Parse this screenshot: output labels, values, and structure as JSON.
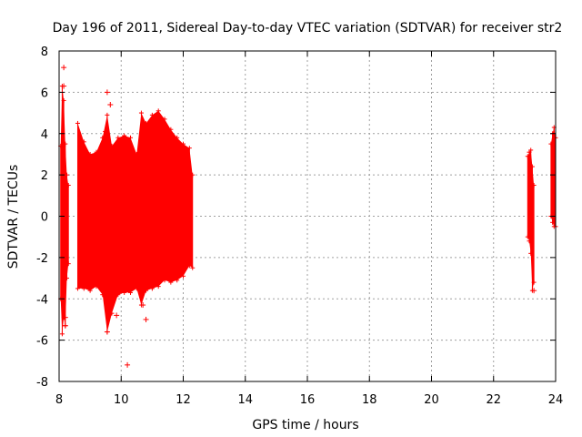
{
  "chart_data": {
    "type": "scatter",
    "title": "Day 196 of 2011, Sidereal Day-to-day VTEC variation (SDTVAR) for receiver str2",
    "xlabel": "GPS time / hours",
    "ylabel": "SDTVAR / TECUs",
    "xlim": [
      8,
      24
    ],
    "ylim": [
      -8,
      8
    ],
    "xticks": [
      8,
      10,
      12,
      14,
      16,
      18,
      20,
      22,
      24
    ],
    "yticks": [
      -8,
      -6,
      -4,
      -2,
      0,
      2,
      4,
      6,
      8
    ],
    "grid": true,
    "legend": "none",
    "color": "#ff0000",
    "marker": "+",
    "series": [
      {
        "segments": [
          {
            "x": [
              8.05,
              8.1,
              8.15,
              8.2,
              8.25,
              8.3
            ],
            "ymin": [
              -4.0,
              -5.7,
              -4.9,
              -5.3,
              -3.0,
              -2.3
            ],
            "ymax": [
              3.4,
              6.3,
              5.6,
              3.5,
              2.0,
              1.5
            ]
          },
          {
            "x": [
              8.6,
              8.8,
              9.0,
              9.2,
              9.4,
              9.55,
              9.7,
              9.9,
              10.1,
              10.3,
              10.5,
              10.65,
              10.8,
              11.0,
              11.2,
              11.4,
              11.6,
              11.8,
              12.0,
              12.2,
              12.3
            ],
            "ymin": [
              -3.5,
              -3.5,
              -3.6,
              -3.4,
              -3.8,
              -5.6,
              -4.7,
              -3.8,
              -3.7,
              -3.7,
              -3.5,
              -4.3,
              -3.6,
              -3.5,
              -3.4,
              -3.1,
              -3.2,
              -3.1,
              -2.9,
              -2.4,
              -2.5
            ],
            "ymax": [
              4.5,
              3.6,
              3.0,
              3.1,
              3.8,
              4.9,
              3.4,
              3.8,
              3.9,
              3.8,
              3.0,
              5.0,
              4.5,
              4.9,
              5.1,
              4.7,
              4.2,
              3.8,
              3.5,
              3.3,
              2.0
            ]
          },
          {
            "x": [
              23.1,
              23.15,
              23.2,
              23.25,
              23.3
            ],
            "ymin": [
              -1.0,
              -1.2,
              -1.8,
              -3.6,
              -3.2
            ],
            "ymax": [
              2.9,
              3.1,
              3.2,
              2.4,
              1.5
            ]
          },
          {
            "x": [
              23.85,
              23.9,
              23.95,
              24.0
            ],
            "ymin": [
              0.0,
              -0.3,
              -0.5,
              -0.5
            ],
            "ymax": [
              3.5,
              4.0,
              4.3,
              3.8
            ]
          }
        ],
        "outliers": [
          {
            "x": 8.15,
            "y": 7.2
          },
          {
            "x": 8.15,
            "y": 6.3
          },
          {
            "x": 8.2,
            "y": -4.9
          },
          {
            "x": 8.2,
            "y": -5.3
          },
          {
            "x": 9.55,
            "y": 6.0
          },
          {
            "x": 9.65,
            "y": 5.4
          },
          {
            "x": 9.5,
            "y": 4.1
          },
          {
            "x": 9.85,
            "y": -4.8
          },
          {
            "x": 9.55,
            "y": -5.6
          },
          {
            "x": 10.2,
            "y": -7.2
          },
          {
            "x": 10.55,
            "y": -3.5
          },
          {
            "x": 10.8,
            "y": -5.0
          },
          {
            "x": 10.7,
            "y": -4.3
          },
          {
            "x": 23.3,
            "y": -3.6
          }
        ]
      }
    ]
  }
}
